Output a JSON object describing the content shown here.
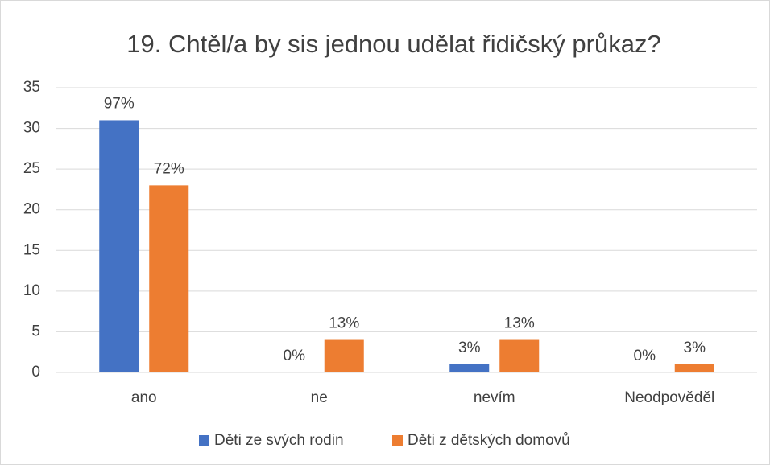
{
  "chart_data": {
    "type": "bar",
    "title": "19. Chtěl/a by sis jednou udělat řidičský průkaz?",
    "categories": [
      "ano",
      "ne",
      "nevím",
      "Neodpověděl"
    ],
    "series": [
      {
        "name": "Děti ze svých rodin",
        "color": "#4472c4",
        "values": [
          31,
          0,
          1,
          0
        ],
        "labels": [
          "97%",
          "0%",
          "3%",
          "0%"
        ]
      },
      {
        "name": "Děti z dětských domovů",
        "color": "#ed7d31",
        "values": [
          23,
          4,
          4,
          1
        ],
        "labels": [
          "72%",
          "13%",
          "13%",
          "3%"
        ]
      }
    ],
    "ylim": [
      0,
      35
    ],
    "yticks": [
      0,
      5,
      10,
      15,
      20,
      25,
      30,
      35
    ],
    "grid": true,
    "legend": "bottom"
  }
}
